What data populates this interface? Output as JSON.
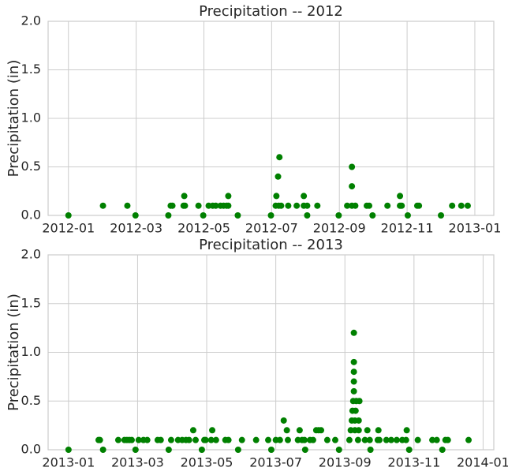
{
  "chart_data": [
    {
      "type": "scatter",
      "title": "Precipitation -- 2012",
      "y_label": "Precipitation (in)",
      "color": "#008000",
      "grid": true,
      "xlim": [
        -0.6,
        12.56
      ],
      "ylim": [
        0,
        2
      ],
      "xticks": [
        {
          "value": 0,
          "label": "2012-01"
        },
        {
          "value": 2,
          "label": "2012-03"
        },
        {
          "value": 4,
          "label": "2012-05"
        },
        {
          "value": 6,
          "label": "2012-07"
        },
        {
          "value": 8,
          "label": "2012-09"
        },
        {
          "value": 10,
          "label": "2012-11"
        },
        {
          "value": 12,
          "label": "2013-01"
        }
      ],
      "yticks": [
        {
          "value": 0,
          "label": "0.0"
        },
        {
          "value": 0.5,
          "label": "0.5"
        },
        {
          "value": 1,
          "label": "1.0"
        },
        {
          "value": 1.5,
          "label": "1.5"
        },
        {
          "value": 2,
          "label": "2.0"
        }
      ],
      "x": [
        0,
        1.02,
        1.74,
        1.98,
        2.95,
        3.02,
        3.07,
        3.4,
        3.42,
        3.44,
        3.84,
        3.98,
        4.14,
        4.26,
        4.35,
        4.49,
        4.58,
        4.67,
        4.72,
        4.72,
        5.0,
        5.98,
        6.12,
        6.14,
        6.19,
        6.23,
        6.21,
        6.28,
        6.49,
        6.74,
        6.95,
        6.95,
        7.05,
        7.05,
        7.35,
        7.98,
        8.23,
        8.37,
        8.37,
        8.37,
        8.47,
        8.81,
        8.88,
        8.98,
        9.42,
        9.79,
        9.79,
        9.84,
        10.02,
        10.3,
        10.35,
        11.0,
        11.33,
        11.6,
        11.79
      ],
      "values": [
        0,
        0.1,
        0.1,
        0,
        0,
        0.1,
        0.1,
        0.1,
        0.2,
        0.1,
        0.1,
        0,
        0.1,
        0.1,
        0.1,
        0.1,
        0.1,
        0.1,
        0.2,
        0.1,
        0,
        0,
        0.1,
        0.2,
        0.4,
        0.6,
        0.1,
        0.1,
        0.1,
        0.1,
        0.1,
        0.2,
        0.1,
        0,
        0.1,
        0,
        0.1,
        0.1,
        0.3,
        0.5,
        0.1,
        0.1,
        0.1,
        0,
        0.1,
        0.1,
        0.2,
        0.1,
        0,
        0.1,
        0.1,
        0,
        0.1,
        0.1,
        0.1
      ]
    },
    {
      "type": "scatter",
      "title": "Precipitation -- 2013",
      "y_label": "Precipitation (in)",
      "color": "#008000",
      "grid": true,
      "xlim": [
        -0.59,
        12.31
      ],
      "ylim": [
        0,
        2
      ],
      "xticks": [
        {
          "value": 0,
          "label": "2013-01"
        },
        {
          "value": 2,
          "label": "2013-03"
        },
        {
          "value": 4,
          "label": "2013-05"
        },
        {
          "value": 6,
          "label": "2013-07"
        },
        {
          "value": 8,
          "label": "2013-09"
        },
        {
          "value": 10,
          "label": "2013-11"
        },
        {
          "value": 12,
          "label": "2014-01"
        }
      ],
      "yticks": [
        {
          "value": 0,
          "label": "0.0"
        },
        {
          "value": 0.5,
          "label": "0.5"
        },
        {
          "value": 1,
          "label": "1.0"
        },
        {
          "value": 1.5,
          "label": "1.5"
        },
        {
          "value": 2,
          "label": "2.0"
        }
      ],
      "x": [
        0,
        0.87,
        0.91,
        1.0,
        1.44,
        1.62,
        1.69,
        1.76,
        1.83,
        1.94,
        2.03,
        2.17,
        2.28,
        2.58,
        2.67,
        2.9,
        2.97,
        3.17,
        3.29,
        3.4,
        3.49,
        3.61,
        3.68,
        3.86,
        3.93,
        3.97,
        4.13,
        4.16,
        4.27,
        4.54,
        4.63,
        4.91,
        5.02,
        5.43,
        5.78,
        5.87,
        6.0,
        6.12,
        6.23,
        6.32,
        6.35,
        6.64,
        6.69,
        6.76,
        6.83,
        6.85,
        6.99,
        7.08,
        7.17,
        7.24,
        7.31,
        7.49,
        7.72,
        7.83,
        8.13,
        8.17,
        8.2,
        8.22,
        8.24,
        8.26,
        8.26,
        8.26,
        8.26,
        8.26,
        8.29,
        8.29,
        8.31,
        8.33,
        8.38,
        8.4,
        8.4,
        8.42,
        8.58,
        8.65,
        8.72,
        8.74,
        8.95,
        8.97,
        9.0,
        9.2,
        9.34,
        9.5,
        9.66,
        9.77,
        9.79,
        9.86,
        10.11,
        10.53,
        10.66,
        10.82,
        10.91,
        10.98,
        11.58
      ],
      "values": [
        0,
        0.1,
        0.1,
        0,
        0.1,
        0.1,
        0.1,
        0.1,
        0.1,
        0,
        0.1,
        0.1,
        0.1,
        0.1,
        0.1,
        0,
        0.1,
        0.1,
        0.1,
        0.1,
        0.1,
        0.2,
        0.1,
        0,
        0.1,
        0.1,
        0.1,
        0.2,
        0.1,
        0.1,
        0.1,
        0,
        0.1,
        0.1,
        0.1,
        0,
        0.1,
        0.1,
        0.3,
        0.2,
        0.1,
        0.1,
        0.2,
        0.1,
        0.1,
        0,
        0.1,
        0.1,
        0.2,
        0.2,
        0.2,
        0.1,
        0.1,
        0,
        0.1,
        0.2,
        0.3,
        0.4,
        0.5,
        0.6,
        0.7,
        0.8,
        0.9,
        1.2,
        0.3,
        0.2,
        0.4,
        0.5,
        0.1,
        0.3,
        0.2,
        0.5,
        0.1,
        0.2,
        0.1,
        0,
        0.1,
        0.2,
        0.1,
        0.1,
        0.1,
        0.1,
        0.1,
        0.1,
        0.2,
        0,
        0.1,
        0.1,
        0.1,
        0,
        0.1,
        0.1,
        0.1
      ]
    }
  ]
}
